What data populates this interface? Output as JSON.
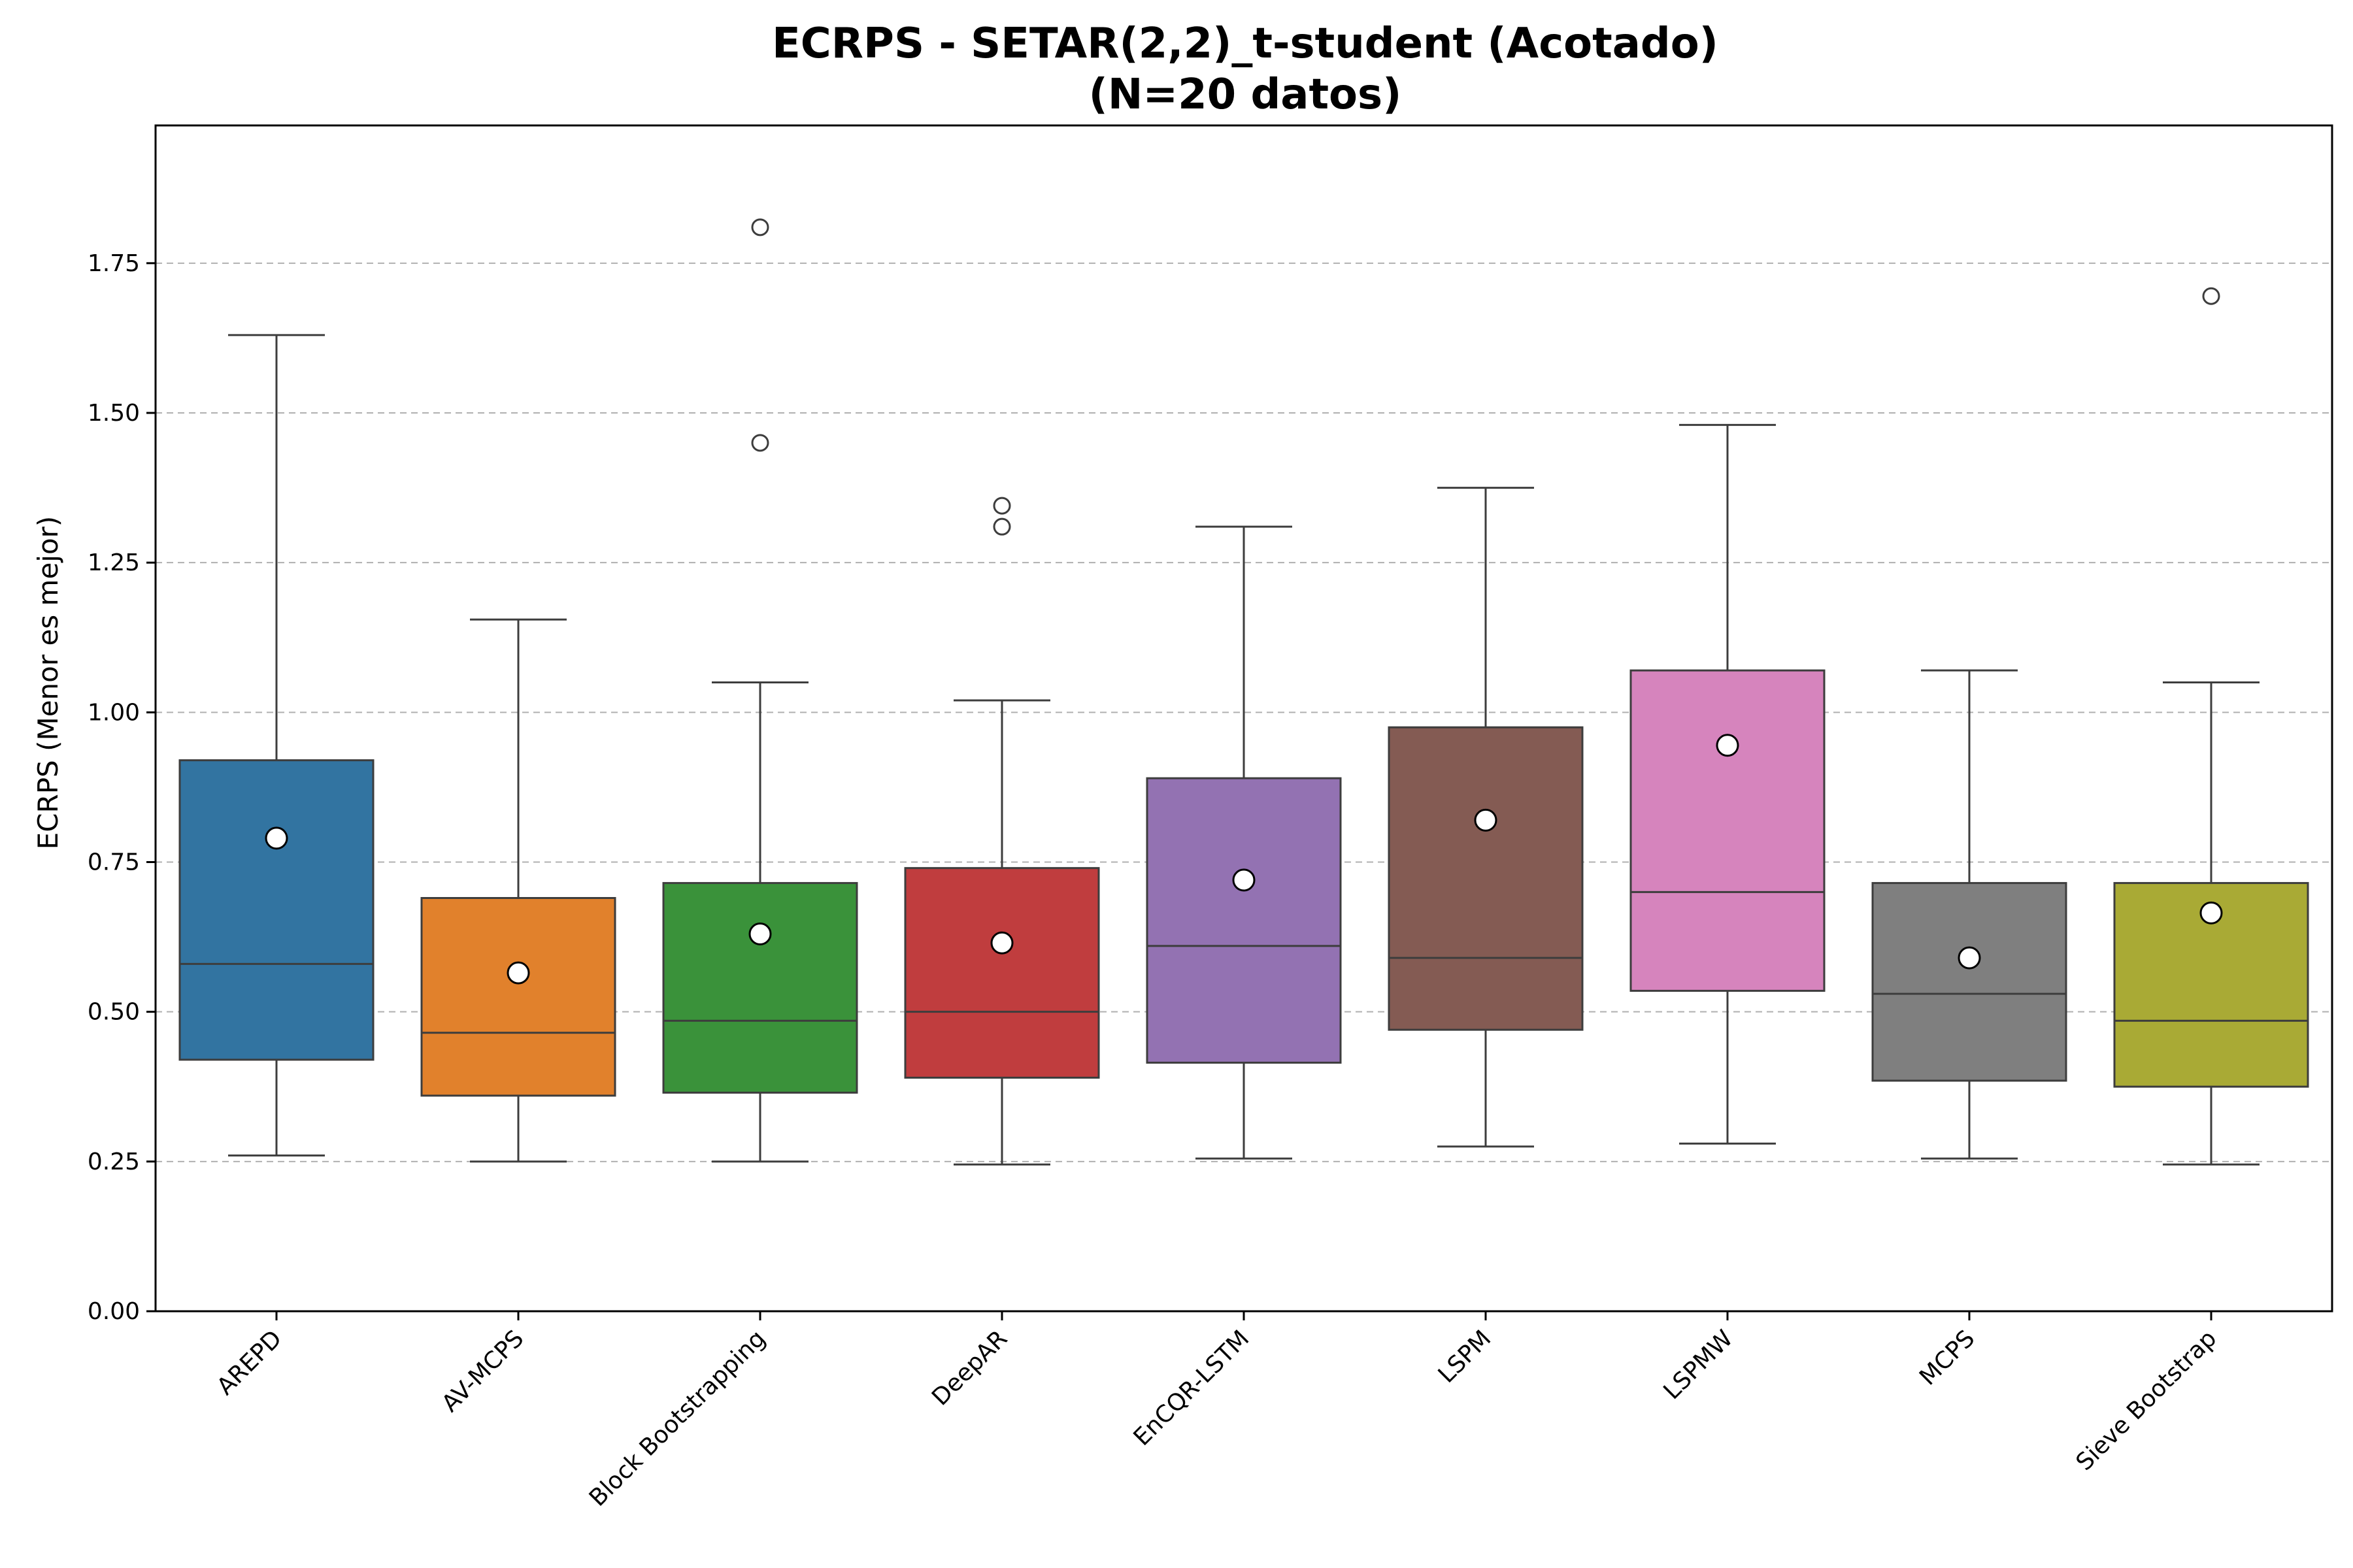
{
  "chart_data": {
    "type": "box",
    "title": "ECRPS - SETAR(2,2)_t-student (Acotado)",
    "subtitle": "(N=20 datos)",
    "xlabel": "",
    "ylabel": "ECRPS (Menor es mejor)",
    "ylim": [
      0,
      1.98
    ],
    "yticks": [
      "0.00",
      "0.25",
      "0.50",
      "0.75",
      "1.00",
      "1.25",
      "1.50",
      "1.75"
    ],
    "grid": "y-dashed",
    "categories": [
      "AREPD",
      "AV-MCPS",
      "Block Bootstrapping",
      "DeepAR",
      "EnCQR-LSTM",
      "LSPM",
      "LSPMW",
      "MCPS",
      "Sieve Bootstrap"
    ],
    "colors": [
      "#3274a1",
      "#e1812c",
      "#3a923a",
      "#c03d3e",
      "#9372b2",
      "#845b53",
      "#d684bd",
      "#7f7f7f",
      "#a9aa35"
    ],
    "boxes": [
      {
        "whisker_low": 0.26,
        "q1": 0.42,
        "median": 0.58,
        "q3": 0.92,
        "whisker_high": 1.63,
        "mean": 0.79,
        "outliers": []
      },
      {
        "whisker_low": 0.25,
        "q1": 0.36,
        "median": 0.465,
        "q3": 0.69,
        "whisker_high": 1.155,
        "mean": 0.565,
        "outliers": []
      },
      {
        "whisker_low": 0.25,
        "q1": 0.365,
        "median": 0.485,
        "q3": 0.715,
        "whisker_high": 1.05,
        "mean": 0.63,
        "outliers": [
          1.45,
          1.81
        ]
      },
      {
        "whisker_low": 0.245,
        "q1": 0.39,
        "median": 0.5,
        "q3": 0.74,
        "whisker_high": 1.02,
        "mean": 0.615,
        "outliers": [
          1.31,
          1.345
        ]
      },
      {
        "whisker_low": 0.255,
        "q1": 0.415,
        "median": 0.61,
        "q3": 0.89,
        "whisker_high": 1.31,
        "mean": 0.72,
        "outliers": []
      },
      {
        "whisker_low": 0.275,
        "q1": 0.47,
        "median": 0.59,
        "q3": 0.975,
        "whisker_high": 1.375,
        "mean": 0.82,
        "outliers": []
      },
      {
        "whisker_low": 0.28,
        "q1": 0.535,
        "median": 0.7,
        "q3": 1.07,
        "whisker_high": 1.48,
        "mean": 0.945,
        "outliers": []
      },
      {
        "whisker_low": 0.255,
        "q1": 0.385,
        "median": 0.53,
        "q3": 0.715,
        "whisker_high": 1.07,
        "mean": 0.59,
        "outliers": []
      },
      {
        "whisker_low": 0.245,
        "q1": 0.375,
        "median": 0.485,
        "q3": 0.715,
        "whisker_high": 1.05,
        "mean": 0.665,
        "outliers": [
          1.695
        ]
      }
    ]
  }
}
